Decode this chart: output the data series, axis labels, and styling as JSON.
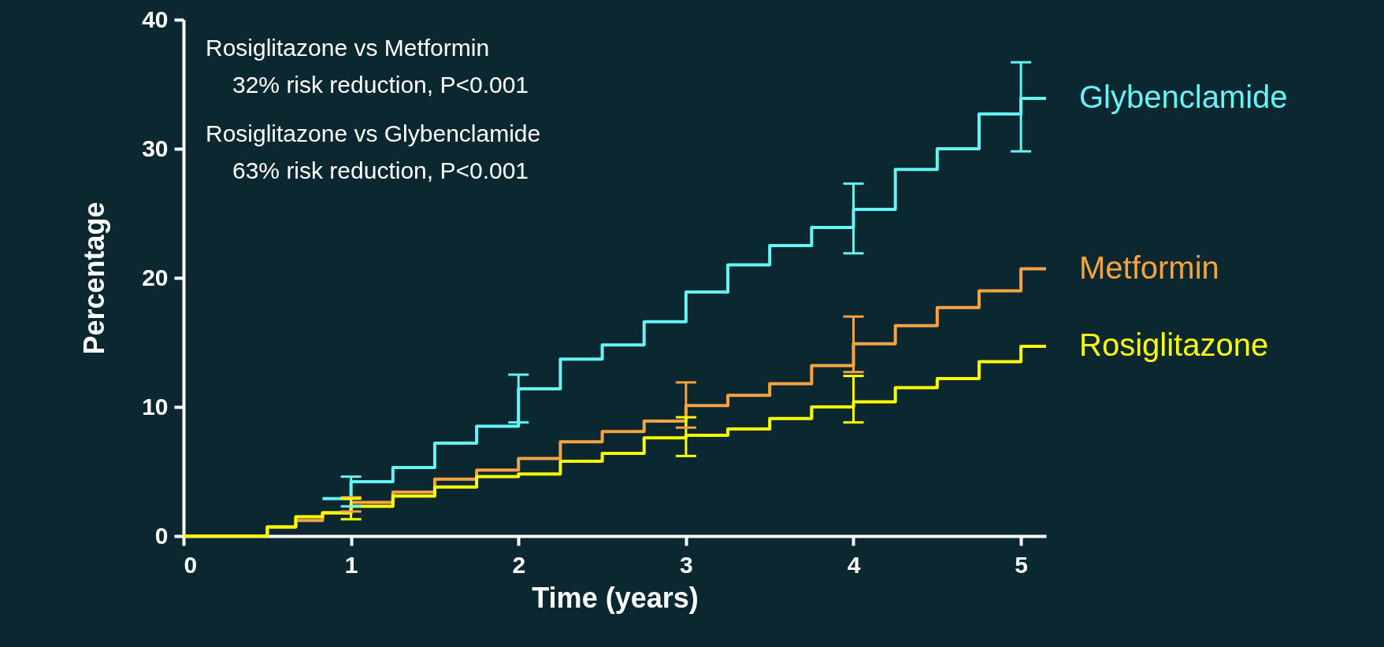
{
  "chart_data": {
    "type": "step",
    "xlabel": "Time (years)",
    "ylabel": "Percentage",
    "annotations": [
      "Rosiglitazone vs Metformin",
      "32% risk reduction, P<0.001",
      "Rosiglitazone vs Glybenclamide",
      "63% risk reduction, P<0.001"
    ],
    "xlim": [
      0,
      5.15
    ],
    "xticks": [
      0,
      1,
      2,
      3,
      4,
      5
    ],
    "ylim": [
      0,
      40
    ],
    "yticks": [
      0,
      10,
      20,
      30,
      40
    ],
    "grid": false,
    "marker": "none",
    "line_style": "solid",
    "x": [
      0,
      0.5,
      0.67,
      0.83,
      1,
      1.25,
      1.5,
      1.75,
      2,
      2.25,
      2.5,
      2.75,
      3,
      3.25,
      3.5,
      3.75,
      4,
      4.25,
      4.5,
      4.75,
      5,
      5.15
    ],
    "series": [
      {
        "name": "Glybenclamide",
        "color": "#66f5f7",
        "values": [
          null,
          null,
          null,
          2.9,
          4.2,
          5.3,
          7.2,
          8.5,
          11.4,
          13.7,
          14.8,
          16.6,
          18.9,
          21.0,
          22.5,
          23.9,
          25.3,
          28.4,
          30.0,
          32.7,
          33.9,
          33.9
        ],
        "errors": [
          null,
          null,
          null,
          null,
          [
            2.3,
            4.6
          ],
          null,
          null,
          null,
          [
            8.8,
            12.5
          ],
          null,
          null,
          null,
          null,
          null,
          null,
          null,
          [
            21.9,
            27.3
          ],
          null,
          null,
          null,
          [
            29.8,
            36.7
          ],
          null
        ]
      },
      {
        "name": "Metformin",
        "color": "#f7a440",
        "values": [
          0,
          0.7,
          1.2,
          1.8,
          2.6,
          3.4,
          4.4,
          5.1,
          6.0,
          7.3,
          8.1,
          8.9,
          10.1,
          10.9,
          11.8,
          13.2,
          14.9,
          16.3,
          17.7,
          19.0,
          20.7,
          20.7
        ],
        "errors": [
          null,
          null,
          null,
          null,
          [
            1.9,
            3.0
          ],
          null,
          null,
          null,
          null,
          null,
          null,
          null,
          [
            8.4,
            11.9
          ],
          null,
          null,
          null,
          [
            12.7,
            17.0
          ],
          null,
          null,
          null,
          null,
          null
        ]
      },
      {
        "name": "Rosiglitazone",
        "color": "#ffff00",
        "values": [
          0,
          0.7,
          1.5,
          1.8,
          2.3,
          3.1,
          3.8,
          4.6,
          4.8,
          5.8,
          6.4,
          7.6,
          7.8,
          8.3,
          9.1,
          10.0,
          10.4,
          11.5,
          12.2,
          13.5,
          14.7,
          14.7
        ],
        "errors": [
          null,
          null,
          null,
          null,
          [
            1.3,
            2.9
          ],
          null,
          null,
          null,
          null,
          null,
          null,
          null,
          [
            6.2,
            9.2
          ],
          null,
          null,
          null,
          [
            8.8,
            12.4
          ],
          null,
          null,
          null,
          null,
          null
        ]
      }
    ]
  }
}
